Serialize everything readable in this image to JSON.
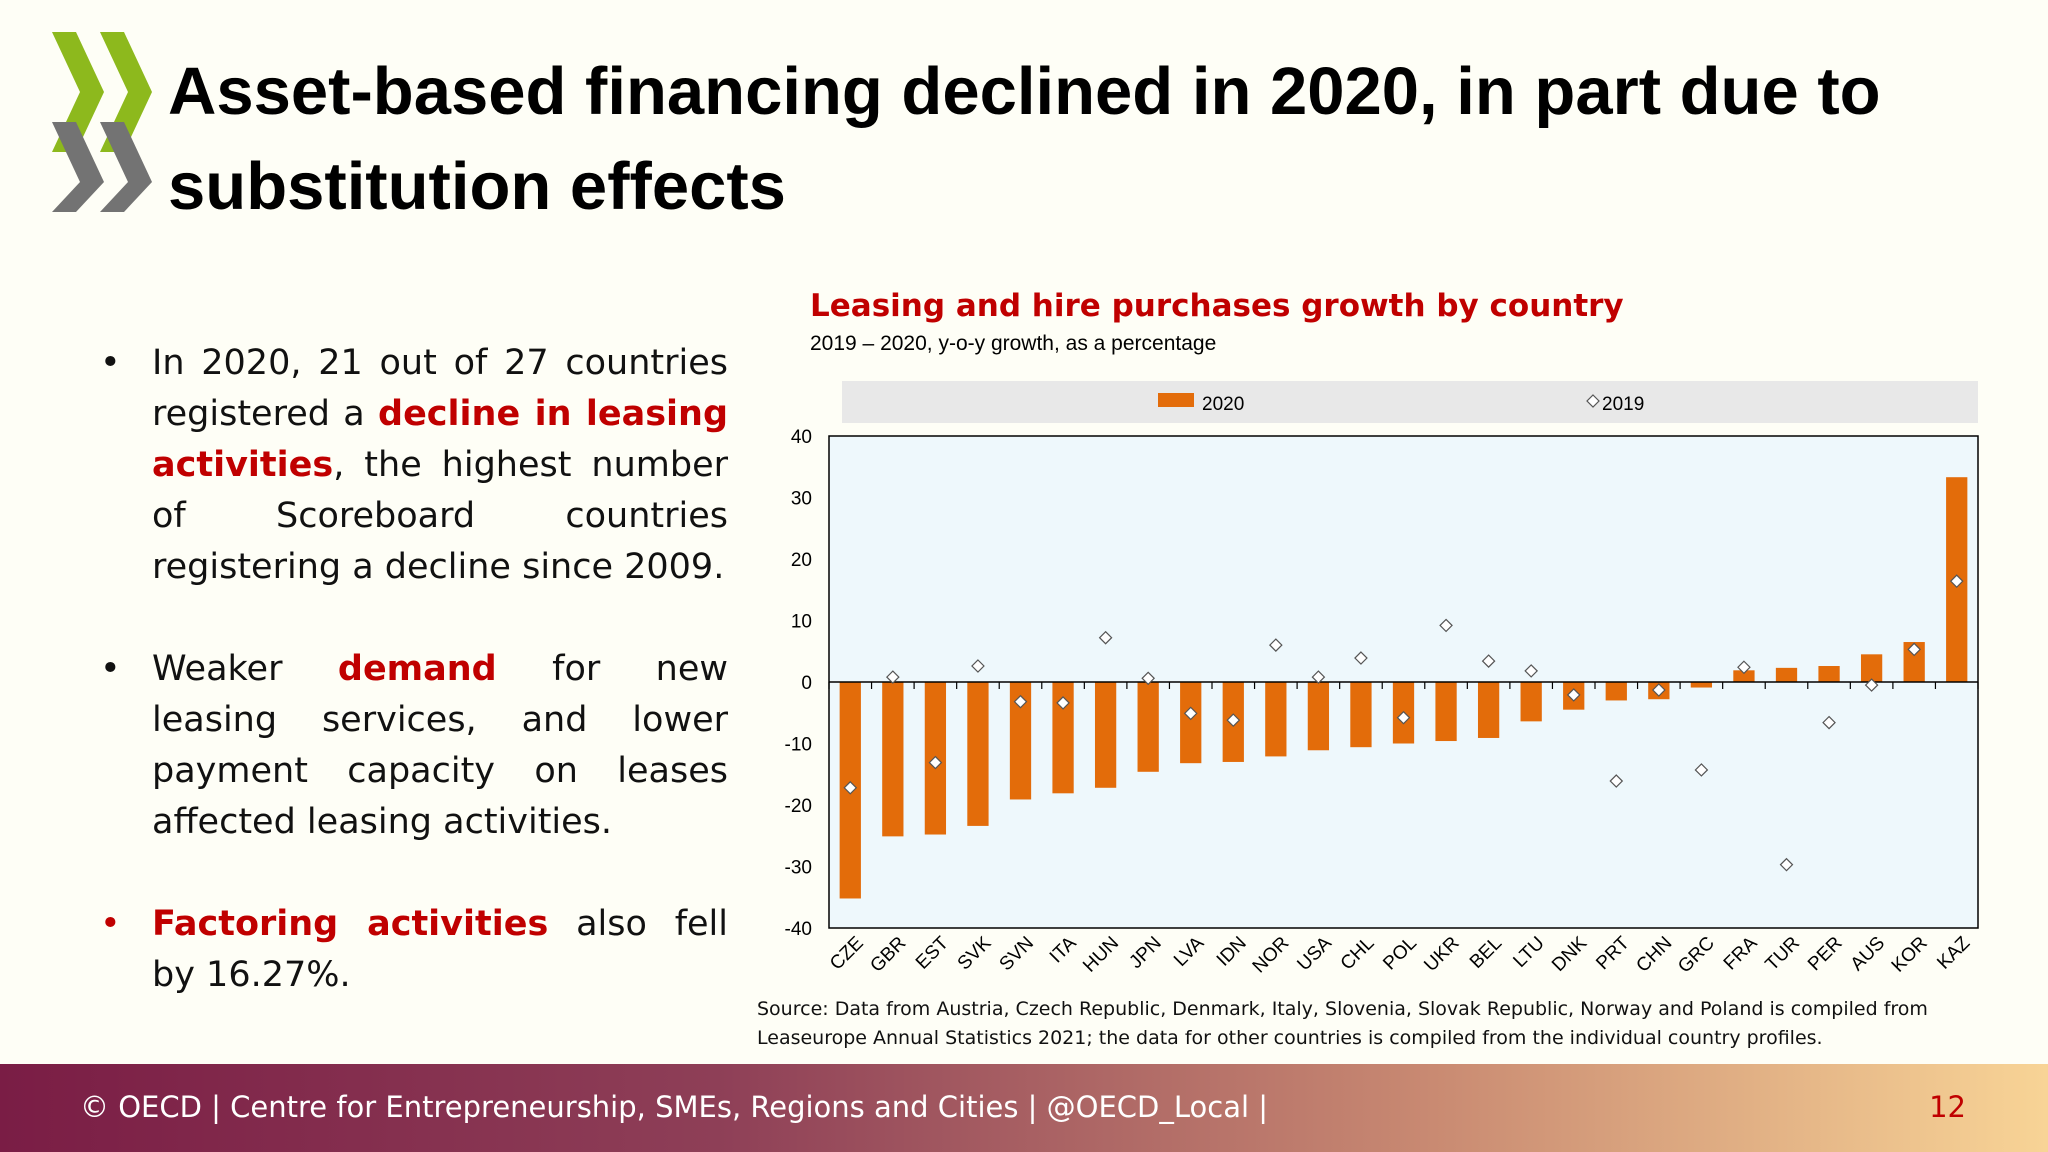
{
  "slide": {
    "title": "Asset-based financing declined in 2020, in part due to substitution effects",
    "bullet_char": "•",
    "bullets": [
      {
        "parts": [
          {
            "text": "In 2020, 21 out of 27 countries registered a ",
            "highlight": false
          },
          {
            "text": "decline in leasing activities",
            "highlight": true
          },
          {
            "text": ", the highest number of Scoreboard countries registering a decline since 2009.",
            "highlight": false
          }
        ]
      },
      {
        "parts": [
          {
            "text": "Weaker ",
            "highlight": false
          },
          {
            "text": "demand",
            "highlight": true
          },
          {
            "text": " for new leasing services, and lower payment capacity on leases affected leasing activities.",
            "highlight": false
          }
        ]
      },
      {
        "red_bullet": true,
        "parts": [
          {
            "text": "Factoring activities",
            "highlight": true
          },
          {
            "text": " also fell by 16.27%.",
            "highlight": false
          }
        ]
      }
    ],
    "source": "Source: Data from Austria, Czech Republic, Denmark, Italy, Slovenia, Slovak Republic, Norway and Poland is compiled from Leaseurope Annual Statistics 2021; the data for other countries is compiled from the individual country profiles.",
    "footer": "© OECD | Centre for Entrepreneurship, SMEs, Regions and Cities | @OECD_Local |",
    "page_number": "12"
  },
  "colors": {
    "bar_2020": "#e36c0a",
    "highlight": "#c00000",
    "plot_bg": "#eef8fc",
    "legend_bg": "#e8e8e8",
    "logo_green": "#8db91d",
    "logo_grey": "#737373"
  },
  "chart_data": {
    "type": "bar",
    "title": "Leasing and hire purchases growth by country",
    "subtitle": "2019 – 2020, y-o-y growth, as a percentage",
    "categories": [
      "CZE",
      "GBR",
      "EST",
      "SVK",
      "SVN",
      "ITA",
      "HUN",
      "JPN",
      "LVA",
      "IDN",
      "NOR",
      "USA",
      "CHL",
      "POL",
      "UKR",
      "BEL",
      "LTU",
      "DNK",
      "PRT",
      "CHN",
      "GRC",
      "FRA",
      "TUR",
      "PER",
      "AUS",
      "KOR",
      "KAZ"
    ],
    "series": [
      {
        "name": "2020",
        "type": "bar",
        "values": [
          -35.2,
          -25.1,
          -24.8,
          -23.4,
          -19.1,
          -18.1,
          -17.2,
          -14.6,
          -13.2,
          -13.0,
          -12.1,
          -11.1,
          -10.6,
          -10.0,
          -9.6,
          -9.1,
          -6.4,
          -4.5,
          -3.0,
          -2.8,
          -0.9,
          1.9,
          2.3,
          2.6,
          4.5,
          6.5,
          33.3
        ]
      },
      {
        "name": "2019",
        "type": "marker",
        "values": [
          -17.2,
          0.8,
          -13.1,
          2.6,
          -3.2,
          -3.4,
          7.2,
          0.6,
          -5.1,
          -6.2,
          6.0,
          0.8,
          3.9,
          -5.8,
          9.2,
          3.4,
          1.8,
          -2.1,
          -16.1,
          -1.3,
          -14.3,
          2.4,
          -29.7,
          -6.6,
          -0.5,
          5.3,
          16.4
        ]
      }
    ],
    "ylim": [
      -40,
      40
    ],
    "yticks": [
      -40,
      -30,
      -20,
      -10,
      0,
      10,
      20,
      30,
      40
    ],
    "legend_position": "top",
    "grid": false
  }
}
